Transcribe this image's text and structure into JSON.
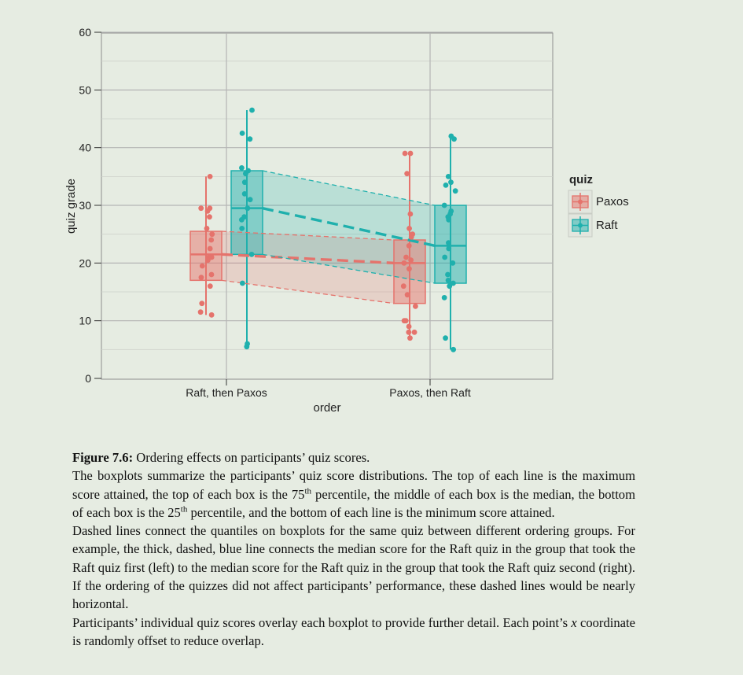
{
  "chart_data": {
    "type": "box",
    "xlabel": "order",
    "ylabel": "quiz grade",
    "ylim": [
      0,
      62
    ],
    "yticks": [
      0,
      10,
      20,
      30,
      40,
      50,
      60
    ],
    "categories": [
      "Raft, then Paxos",
      "Paxos, then Raft"
    ],
    "legend": {
      "title": "quiz",
      "position": "right",
      "entries": [
        "Paxos",
        "Raft"
      ]
    },
    "grid": true,
    "series": [
      {
        "name": "Paxos",
        "color": "#e5736c",
        "boxes": [
          {
            "category": "Raft, then Paxos",
            "min": 11,
            "q1": 17,
            "median": 21.5,
            "q3": 25.5,
            "max": 35,
            "points": [
              35,
              29.5,
              29.5,
              29,
              28,
              26,
              25,
              24,
              22.5,
              21,
              21,
              20.5,
              19.5,
              18,
              17.5,
              16,
              13,
              11.5,
              11
            ]
          },
          {
            "category": "Paxos, then Raft",
            "min": 7,
            "q1": 13,
            "median": 20,
            "q3": 24,
            "max": 39,
            "points": [
              39,
              39,
              35.5,
              28.5,
              26,
              25,
              24.5,
              23,
              21,
              20.5,
              20,
              19,
              16,
              14.5,
              12.5,
              10,
              10,
              9,
              8,
              8,
              7
            ]
          }
        ]
      },
      {
        "name": "Raft",
        "color": "#1fb0ad",
        "boxes": [
          {
            "category": "Raft, then Paxos",
            "min": 5.5,
            "q1": 21.5,
            "median": 29.5,
            "q3": 36,
            "max": 46.5,
            "points": [
              46.5,
              42.5,
              41.5,
              36.5,
              36,
              35.5,
              34,
              32,
              31,
              29.5,
              28,
              27.5,
              26,
              21.5,
              16.5,
              6,
              5.5
            ]
          },
          {
            "category": "Paxos, then Raft",
            "min": 5,
            "q1": 16.5,
            "median": 23,
            "q3": 30,
            "max": 42,
            "points": [
              42,
              41.5,
              35,
              34,
              33.5,
              32.5,
              30,
              29,
              28.5,
              28,
              27.5,
              23.5,
              22.5,
              21,
              20,
              18,
              17,
              16.5,
              16,
              14,
              7,
              5
            ]
          }
        ]
      }
    ]
  },
  "caption": {
    "figure_number": "Figure 7.6:",
    "figure_title": " Ordering effects on participants’ quiz scores.",
    "para1_a": "The boxplots summarize the participants’ quiz score distributions. The top of each line is the maximum score attained, the top of each box is the 75",
    "para1_sup1": "th",
    "para1_b": " percentile, the middle of each box is the median, the bottom of each box is the 25",
    "para1_sup2": "th",
    "para1_c": " percentile, and the bottom of each line is the minimum score attained.",
    "para2": "Dashed lines connect the quantiles on boxplots for the same quiz between different ordering groups. For example, the thick, dashed, blue line connects the median score for the Raft quiz in the group that took the Raft quiz first (left) to the median score for the Raft quiz in the group that took the Raft quiz second (right). If the ordering of the quizzes did not affect participants’ performance, these dashed lines would be nearly horizontal.",
    "para3_a": "Participants’ individual quiz scores overlay each boxplot to provide further detail. Each point’s ",
    "para3_x": "x",
    "para3_b": " coordinate is randomly offset to reduce overlap."
  }
}
